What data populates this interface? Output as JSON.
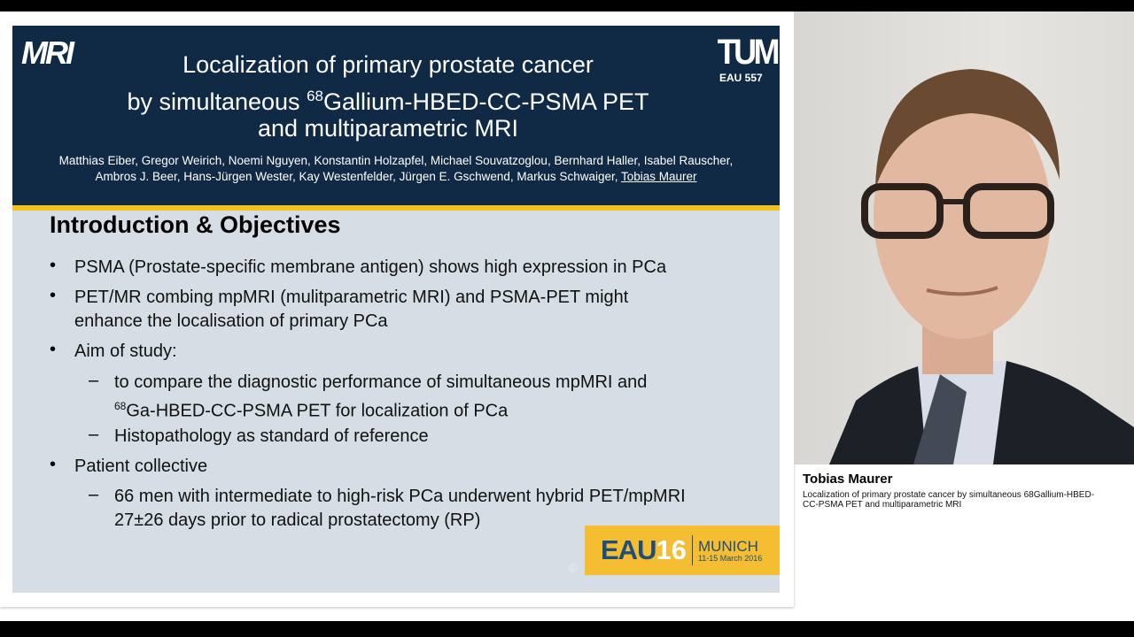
{
  "slide": {
    "logo_left": "MRI",
    "logo_right": "TUM",
    "code": "EAU 557",
    "title_line1": "Localization of primary prostate cancer",
    "title_line2_pre": "by simultaneous ",
    "title_line2_sup": "68",
    "title_line2_post": "Gallium-HBED-CC-PSMA PET",
    "title_line3": "and multiparametric MRI",
    "authors_line1": "Matthias Eiber, Gregor Weirich, Noemi Nguyen, Konstantin Holzapfel, Michael Souvatzoglou, Bernhard Haller, Isabel Rauscher,",
    "authors_line2": "Ambros J. Beer,  Hans-Jürgen Wester, Kay Westenfelder, Jürgen E. Gschwend, Markus Schwaiger, ",
    "authors_presenter": "Tobias Maurer",
    "section_title": "Introduction & Objectives",
    "bullets": [
      "PSMA (Prostate-specific membrane antigen) shows high expression in PCa",
      "PET/MR combing mpMRI (mulitparametric MRI) and PSMA-PET might",
      "enhance the localisation of primary PCa",
      "Aim of study:",
      "to compare the diagnostic performance of simultaneous mpMRI and",
      "68",
      "Ga-HBED-CC-PSMA PET for localization of PCa",
      "Histopathology as standard of reference",
      "Patient collective",
      "66 men with intermediate to high-risk PCa underwent hybrid PET/mpMRI",
      "27±26 days prior to radical prostatectomy (RP)"
    ],
    "eau_logo": {
      "eau": "EAU",
      "num": "16",
      "city": "MUNICH",
      "dates": "11-15 March 2016"
    },
    "copyright": "©"
  },
  "speaker": {
    "name": "Tobias Maurer",
    "talk_title": "Localization of primary prostate cancer by simultaneous 68Gallium-HBED-CC-PSMA PET and multiparametric MRI"
  },
  "colors": {
    "header": "#102a45",
    "accent": "#f2c11f",
    "body": "#d6dde5"
  }
}
